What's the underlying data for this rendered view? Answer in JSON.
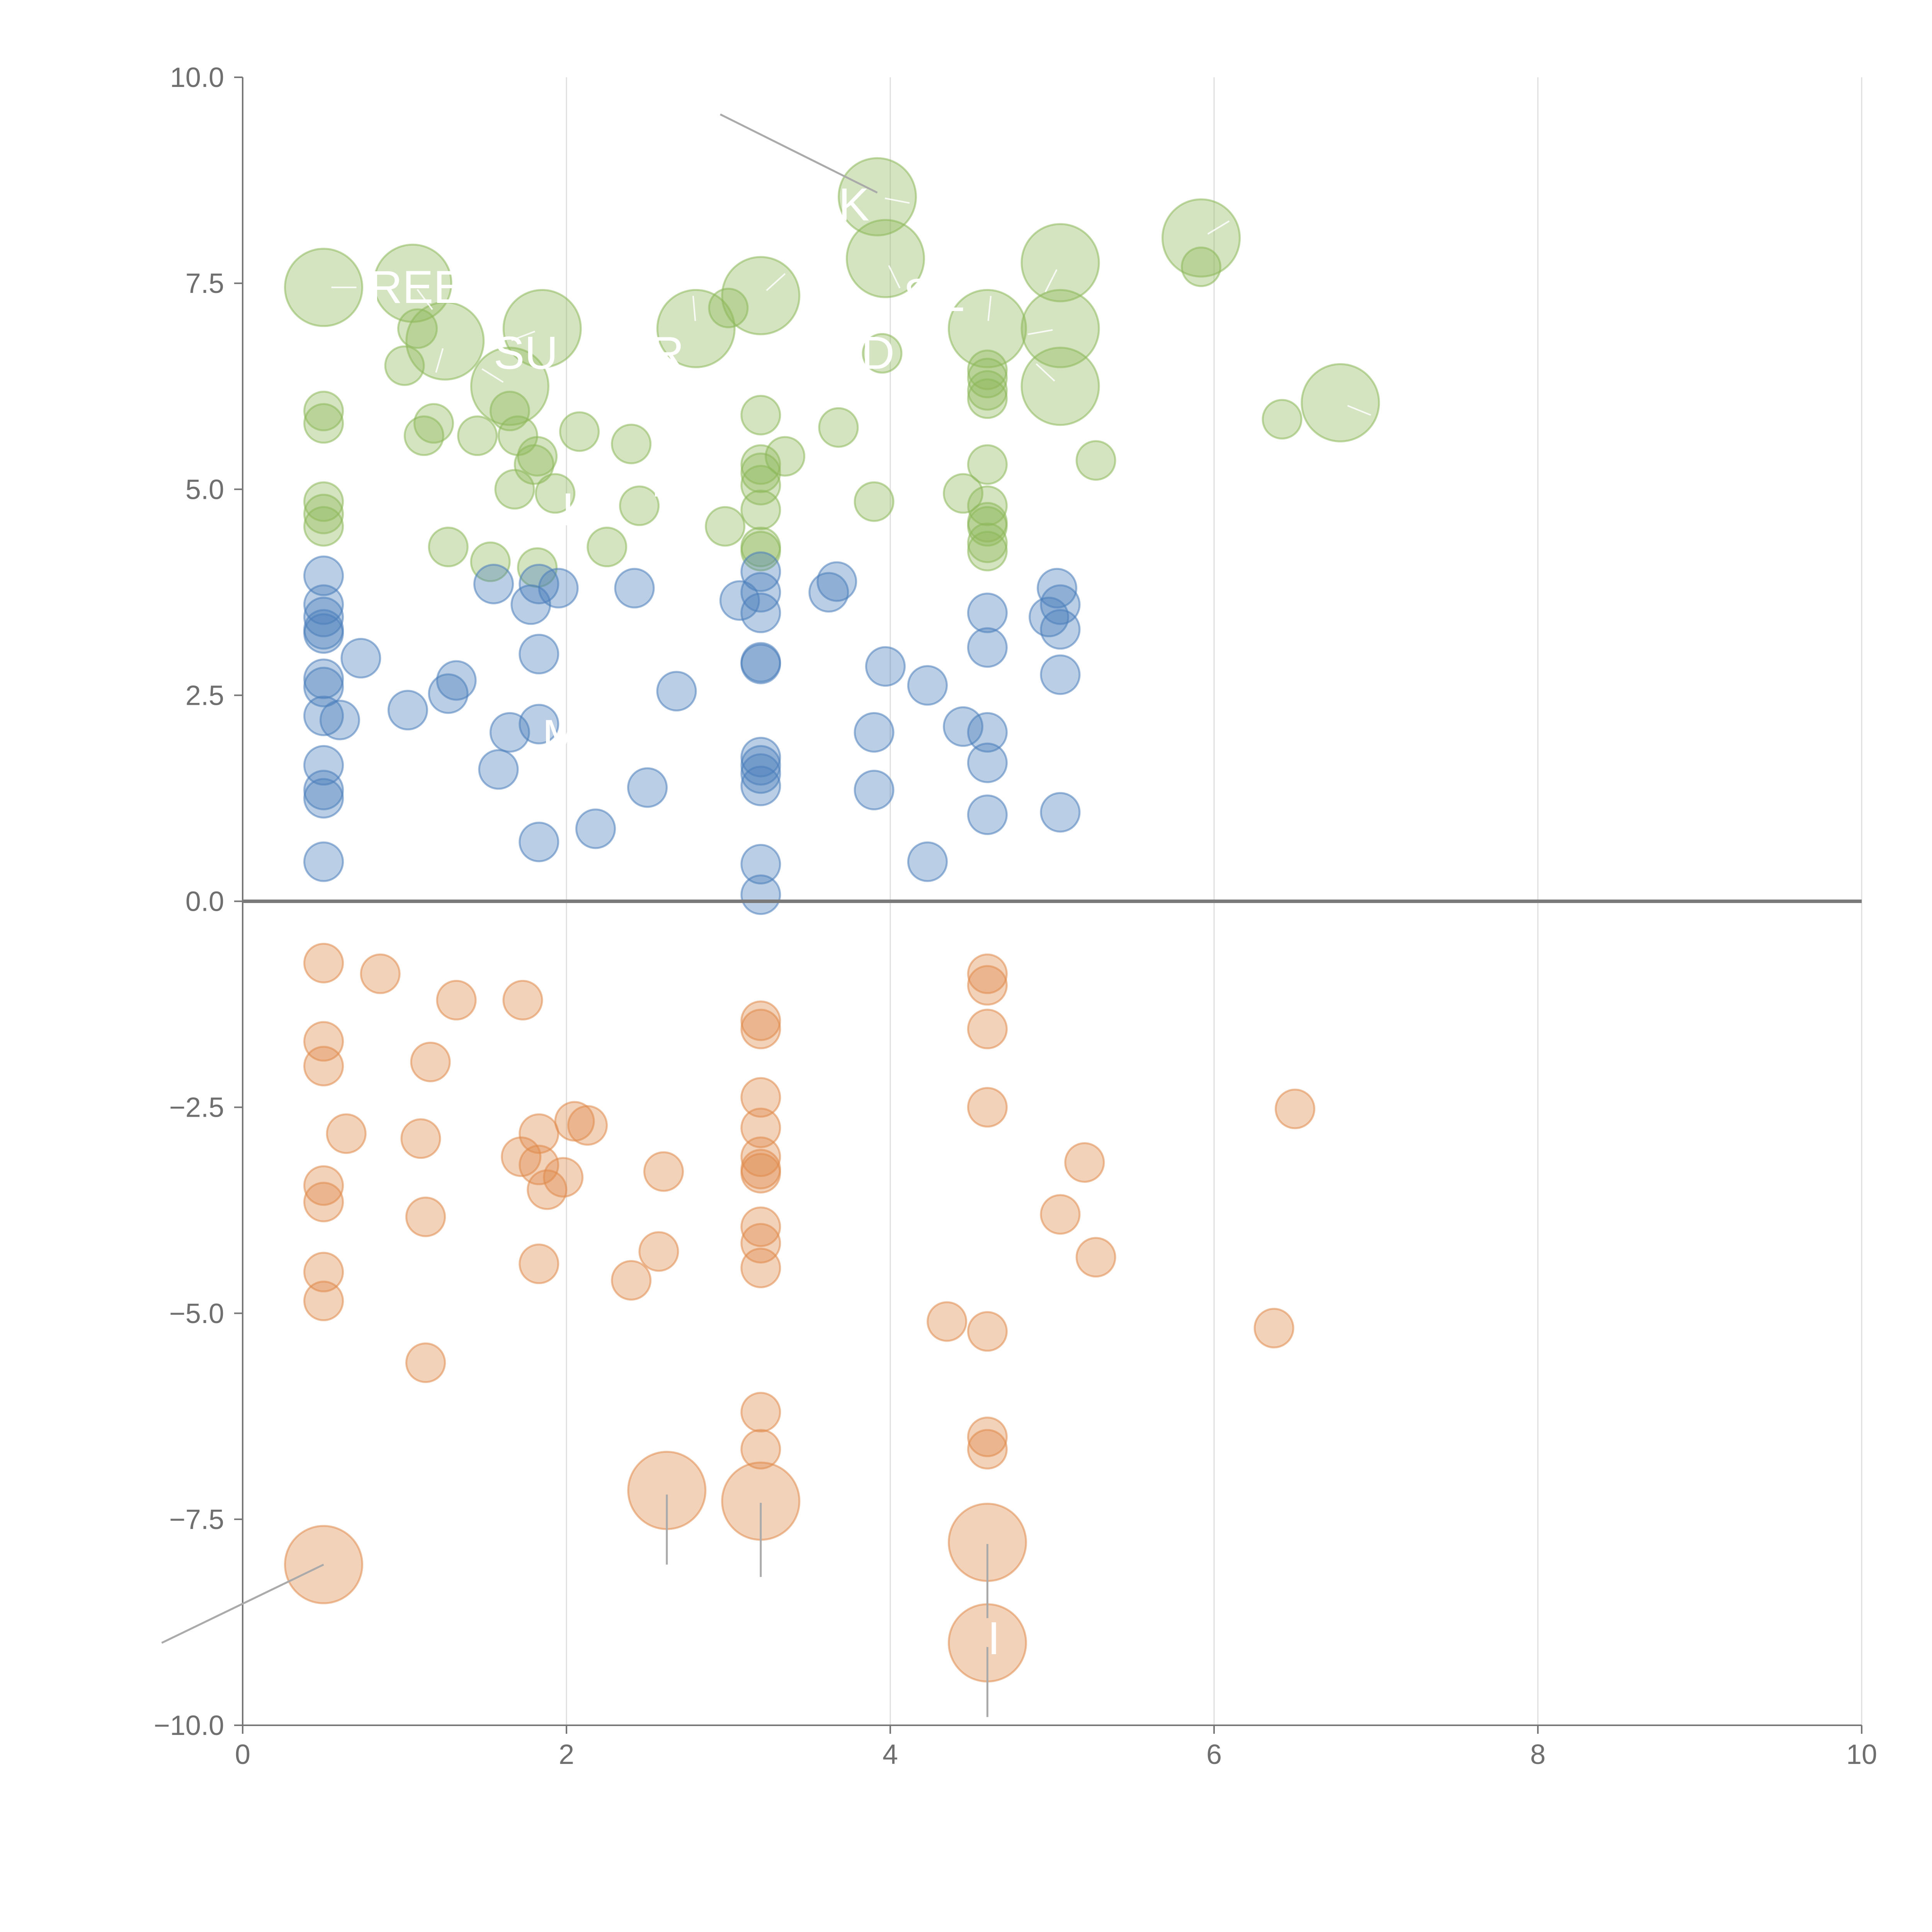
{
  "colors": {
    "positive_high": "#8db85a",
    "positive_mid": "#4a7ebb",
    "negative": "#e08a4a",
    "grid": "#dddddd",
    "axis": "#777777",
    "text": "#6f6f6f"
  },
  "chart_data": {
    "type": "scatter",
    "variant": "bubble",
    "title": "",
    "xlabel": "",
    "ylabel": "",
    "xlim": [
      0,
      10
    ],
    "ylim": [
      -10,
      10
    ],
    "x_ticks": [
      "0",
      "2",
      "4",
      "6",
      "8",
      "10"
    ],
    "y_ticks": [
      "−10.0",
      "−7.5",
      "−5.0",
      "−2.5",
      "0.0",
      "2.5",
      "5.0",
      "7.5",
      "10.0"
    ],
    "x_tick_values": [
      0,
      2,
      4,
      6,
      8,
      10
    ],
    "y_tick_values": [
      -10,
      -7.5,
      -5,
      -2.5,
      0,
      2.5,
      5,
      7.5,
      10
    ],
    "grid": "vertical",
    "legend": "none",
    "size_unit": "relative (1 = small bubble)",
    "series": [
      {
        "name": "green",
        "color": "#8db85a",
        "points": [
          [
            0.5,
            7.45,
            2.0
          ],
          [
            1.05,
            7.5,
            2.0
          ],
          [
            1.25,
            6.8,
            2.0
          ],
          [
            1.85,
            6.95,
            2.0
          ],
          [
            1.65,
            6.25,
            2.0
          ],
          [
            2.8,
            6.95,
            2.0
          ],
          [
            3.2,
            7.35,
            2.0
          ],
          [
            3.92,
            8.55,
            2.0
          ],
          [
            3.97,
            7.8,
            2.0
          ],
          [
            5.05,
            7.75,
            2.0
          ],
          [
            5.05,
            6.95,
            2.0
          ],
          [
            5.05,
            6.25,
            2.0
          ],
          [
            4.6,
            6.95,
            2.0
          ],
          [
            5.92,
            8.05,
            2.0
          ],
          [
            6.78,
            6.05,
            2.0
          ],
          [
            1.08,
            6.95,
            1
          ],
          [
            1.0,
            6.5,
            1
          ],
          [
            0.5,
            5.95,
            1
          ],
          [
            0.5,
            5.8,
            1
          ],
          [
            1.18,
            5.8,
            1
          ],
          [
            1.12,
            5.65,
            1
          ],
          [
            1.45,
            5.65,
            1
          ],
          [
            1.65,
            5.95,
            1
          ],
          [
            1.7,
            5.65,
            1
          ],
          [
            1.82,
            5.4,
            1
          ],
          [
            1.8,
            5.3,
            1
          ],
          [
            2.08,
            5.7,
            1
          ],
          [
            2.4,
            5.55,
            1
          ],
          [
            1.68,
            5.0,
            1
          ],
          [
            1.93,
            4.95,
            1
          ],
          [
            2.45,
            4.8,
            1
          ],
          [
            0.5,
            4.85,
            1
          ],
          [
            0.5,
            4.7,
            1
          ],
          [
            0.5,
            4.55,
            1
          ],
          [
            1.27,
            4.3,
            1
          ],
          [
            1.53,
            4.12,
            1
          ],
          [
            1.82,
            4.05,
            1
          ],
          [
            2.25,
            4.3,
            1
          ],
          [
            2.98,
            4.55,
            1
          ],
          [
            3.0,
            7.2,
            1
          ],
          [
            3.2,
            5.9,
            1
          ],
          [
            3.2,
            5.3,
            1
          ],
          [
            3.2,
            5.2,
            1
          ],
          [
            3.2,
            5.05,
            1
          ],
          [
            3.2,
            4.75,
            1
          ],
          [
            3.2,
            4.3,
            1
          ],
          [
            3.2,
            4.25,
            1
          ],
          [
            3.35,
            5.4,
            1
          ],
          [
            3.68,
            5.75,
            1
          ],
          [
            3.9,
            4.85,
            1
          ],
          [
            3.95,
            6.65,
            1
          ],
          [
            4.45,
            4.95,
            1
          ],
          [
            4.6,
            6.45,
            1
          ],
          [
            4.6,
            6.35,
            1
          ],
          [
            4.6,
            6.2,
            1
          ],
          [
            4.6,
            6.1,
            1
          ],
          [
            4.6,
            5.3,
            1
          ],
          [
            4.6,
            4.8,
            1
          ],
          [
            4.6,
            4.6,
            1
          ],
          [
            4.6,
            4.55,
            1
          ],
          [
            4.6,
            4.35,
            1
          ],
          [
            4.6,
            4.25,
            1
          ],
          [
            5.27,
            5.35,
            1
          ],
          [
            5.92,
            7.7,
            1
          ],
          [
            6.42,
            5.85,
            1
          ]
        ]
      },
      {
        "name": "blue",
        "color": "#4a7ebb",
        "points": [
          [
            0.5,
            3.95,
            1
          ],
          [
            0.5,
            3.6,
            1
          ],
          [
            0.5,
            3.45,
            1
          ],
          [
            0.5,
            3.3,
            1
          ],
          [
            0.5,
            3.25,
            1
          ],
          [
            0.5,
            2.7,
            1
          ],
          [
            0.5,
            2.6,
            1
          ],
          [
            0.5,
            2.25,
            1
          ],
          [
            0.5,
            1.65,
            1
          ],
          [
            0.5,
            1.35,
            1
          ],
          [
            0.5,
            1.25,
            1
          ],
          [
            0.5,
            0.48,
            1
          ],
          [
            0.6,
            2.2,
            1
          ],
          [
            0.73,
            2.95,
            1
          ],
          [
            1.02,
            2.32,
            1
          ],
          [
            1.27,
            2.52,
            1
          ],
          [
            1.32,
            2.68,
            1
          ],
          [
            1.55,
            3.85,
            1
          ],
          [
            1.58,
            1.6,
            1
          ],
          [
            1.65,
            2.05,
            1
          ],
          [
            1.78,
            3.6,
            1
          ],
          [
            1.83,
            3.85,
            1
          ],
          [
            1.83,
            3.0,
            1
          ],
          [
            1.83,
            2.15,
            1
          ],
          [
            1.83,
            0.72,
            1
          ],
          [
            1.95,
            3.8,
            1
          ],
          [
            2.18,
            0.88,
            1
          ],
          [
            2.42,
            3.8,
            1
          ],
          [
            2.5,
            1.38,
            1
          ],
          [
            2.68,
            2.55,
            1
          ],
          [
            3.07,
            3.65,
            1
          ],
          [
            3.2,
            4.0,
            1
          ],
          [
            3.2,
            3.75,
            1
          ],
          [
            3.2,
            3.5,
            1
          ],
          [
            3.2,
            2.9,
            1
          ],
          [
            3.2,
            2.88,
            1
          ],
          [
            3.2,
            1.75,
            1
          ],
          [
            3.2,
            1.65,
            1
          ],
          [
            3.2,
            1.55,
            1
          ],
          [
            3.2,
            1.4,
            1
          ],
          [
            3.2,
            0.45,
            1
          ],
          [
            3.2,
            0.08,
            1
          ],
          [
            3.62,
            3.75,
            1
          ],
          [
            3.67,
            3.88,
            1
          ],
          [
            3.9,
            2.05,
            1
          ],
          [
            3.9,
            1.35,
            1
          ],
          [
            3.97,
            2.85,
            1
          ],
          [
            4.23,
            2.62,
            1
          ],
          [
            4.23,
            0.48,
            1
          ],
          [
            4.45,
            2.12,
            1
          ],
          [
            4.6,
            3.5,
            1
          ],
          [
            4.6,
            3.08,
            1
          ],
          [
            4.6,
            2.05,
            1
          ],
          [
            4.6,
            1.68,
            1
          ],
          [
            4.6,
            1.05,
            1
          ],
          [
            4.98,
            3.45,
            1
          ],
          [
            5.03,
            3.8,
            1
          ],
          [
            5.05,
            3.6,
            1
          ],
          [
            5.05,
            3.3,
            1
          ],
          [
            5.05,
            2.75,
            1
          ],
          [
            5.05,
            1.08,
            1
          ]
        ]
      },
      {
        "name": "orange",
        "color": "#e08a4a",
        "points": [
          [
            0.5,
            -0.75,
            1
          ],
          [
            0.85,
            -0.88,
            1
          ],
          [
            1.32,
            -1.2,
            1
          ],
          [
            1.73,
            -1.2,
            1
          ],
          [
            0.5,
            -1.7,
            1
          ],
          [
            0.5,
            -2.0,
            1
          ],
          [
            1.16,
            -1.95,
            1
          ],
          [
            0.64,
            -2.82,
            1
          ],
          [
            1.1,
            -2.88,
            1
          ],
          [
            1.72,
            -3.1,
            1
          ],
          [
            1.83,
            -2.82,
            1
          ],
          [
            1.83,
            -3.2,
            1
          ],
          [
            1.88,
            -3.5,
            1
          ],
          [
            1.98,
            -3.35,
            1
          ],
          [
            2.05,
            -2.67,
            1
          ],
          [
            2.13,
            -2.72,
            1
          ],
          [
            2.6,
            -3.28,
            1
          ],
          [
            2.57,
            -4.25,
            1
          ],
          [
            2.4,
            -4.6,
            1
          ],
          [
            0.5,
            -3.45,
            1
          ],
          [
            0.5,
            -3.65,
            1
          ],
          [
            1.13,
            -3.83,
            1
          ],
          [
            1.83,
            -4.4,
            1
          ],
          [
            0.5,
            -4.5,
            1
          ],
          [
            0.5,
            -4.85,
            1
          ],
          [
            1.13,
            -5.6,
            1
          ],
          [
            3.2,
            -1.45,
            1
          ],
          [
            3.2,
            -1.55,
            1
          ],
          [
            3.2,
            -2.38,
            1
          ],
          [
            3.2,
            -2.75,
            1
          ],
          [
            3.2,
            -3.1,
            1
          ],
          [
            3.2,
            -3.25,
            1
          ],
          [
            3.2,
            -3.3,
            1
          ],
          [
            3.2,
            -3.95,
            1
          ],
          [
            3.2,
            -4.15,
            1
          ],
          [
            3.2,
            -4.45,
            1
          ],
          [
            3.2,
            -6.2,
            1
          ],
          [
            3.2,
            -6.65,
            1
          ],
          [
            4.6,
            -0.88,
            1
          ],
          [
            4.6,
            -1.02,
            1
          ],
          [
            4.6,
            -1.55,
            1
          ],
          [
            4.6,
            -2.5,
            1
          ],
          [
            4.6,
            -5.22,
            1
          ],
          [
            4.6,
            -6.5,
            1
          ],
          [
            4.6,
            -6.65,
            1
          ],
          [
            4.35,
            -5.1,
            1
          ],
          [
            5.05,
            -3.8,
            1
          ],
          [
            5.2,
            -3.17,
            1
          ],
          [
            5.27,
            -4.32,
            1
          ],
          [
            6.37,
            -5.18,
            1
          ],
          [
            6.5,
            -2.52,
            1
          ],
          [
            0.5,
            -8.05,
            2.0
          ],
          [
            2.62,
            -7.15,
            2.0
          ],
          [
            3.2,
            -7.28,
            2.0
          ],
          [
            4.6,
            -7.78,
            2.0
          ],
          [
            4.6,
            -9.0,
            2.0
          ]
        ]
      }
    ],
    "annotation_callouts": [
      {
        "from": [
          3.92,
          8.6
        ],
        "to": [
          2.95,
          9.55
        ]
      },
      {
        "from": [
          0.5,
          -8.05
        ],
        "to": [
          -0.5,
          -9.0
        ]
      },
      {
        "from": [
          2.62,
          -7.2
        ],
        "to": [
          2.62,
          -8.05
        ]
      },
      {
        "from": [
          3.2,
          -7.3
        ],
        "to": [
          3.2,
          -8.2
        ]
      },
      {
        "from": [
          4.6,
          -7.8
        ],
        "to": [
          4.6,
          -8.7
        ]
      },
      {
        "from": [
          4.6,
          -9.05
        ],
        "to": [
          4.6,
          -9.9
        ]
      }
    ],
    "annotation_labels": [
      {
        "text": "REE",
        "x": 0.78,
        "y": 7.45
      },
      {
        "text": "SU",
        "x": 1.55,
        "y": 6.65
      },
      {
        "text": "R",
        "x": 2.52,
        "y": 6.65
      },
      {
        "text": "D",
        "x": 3.82,
        "y": 6.65
      },
      {
        "text": "K",
        "x": 3.68,
        "y": 8.45
      },
      {
        "text": "SE",
        "x": 4.08,
        "y": 7.35
      },
      {
        "text": "I",
        "x": 2.52,
        "y": 5.1
      },
      {
        "text": "I",
        "x": 1.97,
        "y": 4.75
      },
      {
        "text": "M",
        "x": 1.85,
        "y": 2.0
      },
      {
        "text": "I",
        "x": 4.6,
        "y": -8.95
      }
    ]
  }
}
